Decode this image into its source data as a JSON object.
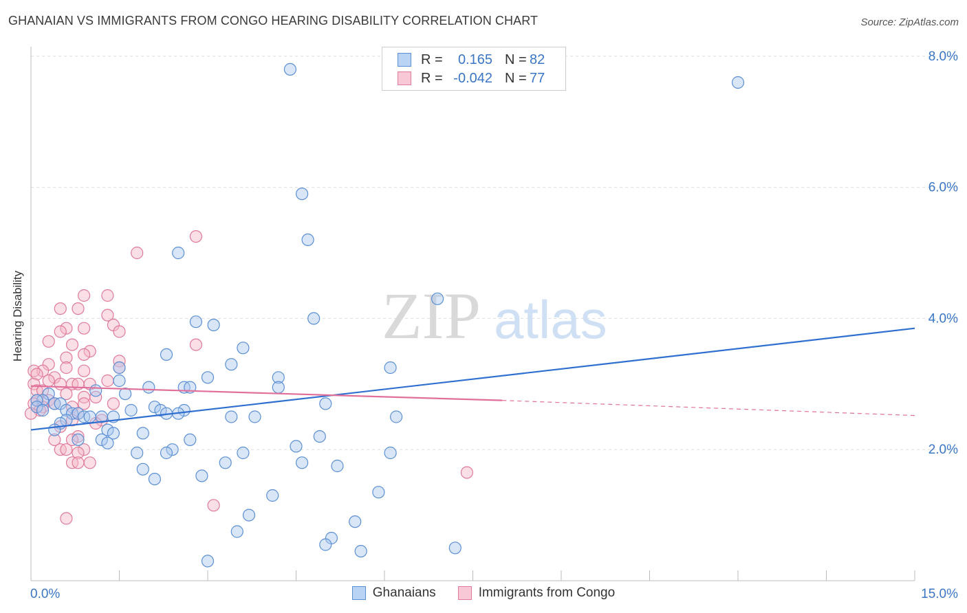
{
  "title": "GHANAIAN VS IMMIGRANTS FROM CONGO HEARING DISABILITY CORRELATION CHART",
  "source": "Source: ZipAtlas.com",
  "watermark": {
    "zip": "ZIP",
    "atlas": "atlas"
  },
  "legend": {
    "rows": [
      {
        "r_label": "R =",
        "r_value": "0.165",
        "n_label": "N =",
        "n_value": "82"
      },
      {
        "r_label": "R =",
        "r_value": "-0.042",
        "n_label": "N =",
        "n_value": "77"
      }
    ]
  },
  "colors": {
    "blue_fill": "#a8c8f0",
    "blue_stroke": "#5b8fd4",
    "blue_line": "#2f6fcf",
    "pink_fill": "#f6b8c8",
    "pink_stroke": "#e07a9a",
    "pink_line": "#e0709a",
    "grid": "#dddddd",
    "tick_label": "#3a76c4"
  },
  "chart_data": {
    "type": "scatter",
    "title": "GHANAIAN VS IMMIGRANTS FROM CONGO HEARING DISABILITY CORRELATION CHART",
    "xlabel": "",
    "ylabel": "Hearing Disability",
    "xlim": [
      0,
      15
    ],
    "ylim": [
      0,
      8
    ],
    "x_tick_labels": [
      "0.0%",
      "15.0%"
    ],
    "y_ticks": [
      2,
      4,
      6,
      8
    ],
    "y_tick_labels": [
      "2.0%",
      "4.0%",
      "6.0%",
      "8.0%"
    ],
    "grid": "horizontal dashed",
    "legend_position": "bottom",
    "series": [
      {
        "name": "Ghanaians",
        "r": 0.165,
        "n": 82,
        "trend": {
          "x": [
            0,
            15
          ],
          "y": [
            2.3,
            3.85
          ]
        },
        "points": [
          [
            4.4,
            7.8
          ],
          [
            12.0,
            7.6
          ],
          [
            4.6,
            5.9
          ],
          [
            4.7,
            5.2
          ],
          [
            2.5,
            5.0
          ],
          [
            6.9,
            4.3
          ],
          [
            4.8,
            4.0
          ],
          [
            2.8,
            3.95
          ],
          [
            3.1,
            3.9
          ],
          [
            3.6,
            3.55
          ],
          [
            2.3,
            3.45
          ],
          [
            3.4,
            3.3
          ],
          [
            6.1,
            3.25
          ],
          [
            1.5,
            3.25
          ],
          [
            3.0,
            3.1
          ],
          [
            4.2,
            3.1
          ],
          [
            1.5,
            3.05
          ],
          [
            2.0,
            2.95
          ],
          [
            2.6,
            2.95
          ],
          [
            2.7,
            2.95
          ],
          [
            4.2,
            2.95
          ],
          [
            1.1,
            2.9
          ],
          [
            1.6,
            2.85
          ],
          [
            0.3,
            2.85
          ],
          [
            0.2,
            2.75
          ],
          [
            0.1,
            2.75
          ],
          [
            0.4,
            2.7
          ],
          [
            0.5,
            2.7
          ],
          [
            0.1,
            2.65
          ],
          [
            0.2,
            2.6
          ],
          [
            2.1,
            2.65
          ],
          [
            5.0,
            2.7
          ],
          [
            0.6,
            2.6
          ],
          [
            0.7,
            2.55
          ],
          [
            0.8,
            2.55
          ],
          [
            1.7,
            2.6
          ],
          [
            2.2,
            2.6
          ],
          [
            2.6,
            2.6
          ],
          [
            0.9,
            2.5
          ],
          [
            1.0,
            2.5
          ],
          [
            1.2,
            2.5
          ],
          [
            1.4,
            2.5
          ],
          [
            2.3,
            2.55
          ],
          [
            2.5,
            2.55
          ],
          [
            0.6,
            2.45
          ],
          [
            3.4,
            2.5
          ],
          [
            3.8,
            2.5
          ],
          [
            6.2,
            2.5
          ],
          [
            0.5,
            2.4
          ],
          [
            0.4,
            2.3
          ],
          [
            1.3,
            2.3
          ],
          [
            1.4,
            2.25
          ],
          [
            1.9,
            2.25
          ],
          [
            0.8,
            2.15
          ],
          [
            1.2,
            2.15
          ],
          [
            2.7,
            2.15
          ],
          [
            4.9,
            2.2
          ],
          [
            1.3,
            2.1
          ],
          [
            4.5,
            2.05
          ],
          [
            2.4,
            2.0
          ],
          [
            1.8,
            1.95
          ],
          [
            3.6,
            1.95
          ],
          [
            2.3,
            1.95
          ],
          [
            6.1,
            1.95
          ],
          [
            3.3,
            1.8
          ],
          [
            4.6,
            1.8
          ],
          [
            5.2,
            1.75
          ],
          [
            1.9,
            1.7
          ],
          [
            2.9,
            1.6
          ],
          [
            2.1,
            1.55
          ],
          [
            5.9,
            1.35
          ],
          [
            4.1,
            1.3
          ],
          [
            3.7,
            1.0
          ],
          [
            5.5,
            0.9
          ],
          [
            3.5,
            0.75
          ],
          [
            5.1,
            0.65
          ],
          [
            5.0,
            0.55
          ],
          [
            7.2,
            0.5
          ],
          [
            5.6,
            0.45
          ],
          [
            3.0,
            0.3
          ]
        ]
      },
      {
        "name": "Immigrants from Congo",
        "r": -0.042,
        "n": 77,
        "trend": {
          "x": [
            0,
            8.0
          ],
          "y": [
            2.97,
            2.75
          ]
        },
        "trend_dashed": {
          "x": [
            8.0,
            15
          ],
          "y": [
            2.75,
            2.52
          ]
        },
        "points": [
          [
            2.8,
            5.25
          ],
          [
            1.8,
            5.0
          ],
          [
            1.3,
            4.35
          ],
          [
            0.9,
            4.35
          ],
          [
            0.5,
            4.15
          ],
          [
            0.8,
            4.15
          ],
          [
            1.3,
            4.05
          ],
          [
            1.4,
            3.9
          ],
          [
            0.6,
            3.85
          ],
          [
            0.9,
            3.85
          ],
          [
            0.5,
            3.8
          ],
          [
            1.5,
            3.8
          ],
          [
            0.3,
            3.65
          ],
          [
            0.7,
            3.6
          ],
          [
            2.8,
            3.6
          ],
          [
            1.0,
            3.5
          ],
          [
            0.9,
            3.45
          ],
          [
            0.6,
            3.4
          ],
          [
            1.5,
            3.35
          ],
          [
            0.3,
            3.3
          ],
          [
            1.5,
            3.25
          ],
          [
            0.6,
            3.25
          ],
          [
            0.9,
            3.2
          ],
          [
            0.2,
            3.2
          ],
          [
            0.05,
            3.2
          ],
          [
            0.1,
            3.15
          ],
          [
            0.4,
            3.1
          ],
          [
            0.3,
            3.05
          ],
          [
            1.3,
            3.05
          ],
          [
            0.5,
            3.0
          ],
          [
            0.7,
            3.0
          ],
          [
            0.8,
            3.0
          ],
          [
            1.0,
            3.0
          ],
          [
            0.05,
            3.0
          ],
          [
            0.1,
            2.9
          ],
          [
            0.2,
            2.9
          ],
          [
            0.6,
            2.85
          ],
          [
            0.9,
            2.8
          ],
          [
            1.1,
            2.8
          ],
          [
            0.3,
            2.75
          ],
          [
            0.1,
            2.75
          ],
          [
            0.05,
            2.7
          ],
          [
            0.4,
            2.7
          ],
          [
            0.9,
            2.7
          ],
          [
            1.4,
            2.7
          ],
          [
            0.2,
            2.65
          ],
          [
            0.7,
            2.65
          ],
          [
            0.15,
            2.6
          ],
          [
            0.8,
            2.55
          ],
          [
            0.0,
            2.55
          ],
          [
            0.7,
            2.45
          ],
          [
            1.2,
            2.45
          ],
          [
            1.1,
            2.4
          ],
          [
            0.5,
            2.35
          ],
          [
            0.8,
            2.2
          ],
          [
            0.4,
            2.15
          ],
          [
            0.7,
            2.15
          ],
          [
            0.5,
            2.0
          ],
          [
            0.6,
            2.0
          ],
          [
            0.9,
            2.0
          ],
          [
            0.8,
            1.95
          ],
          [
            0.7,
            1.8
          ],
          [
            0.8,
            1.8
          ],
          [
            1.0,
            1.8
          ],
          [
            7.4,
            1.65
          ],
          [
            3.1,
            1.15
          ],
          [
            0.6,
            0.95
          ]
        ]
      }
    ]
  }
}
